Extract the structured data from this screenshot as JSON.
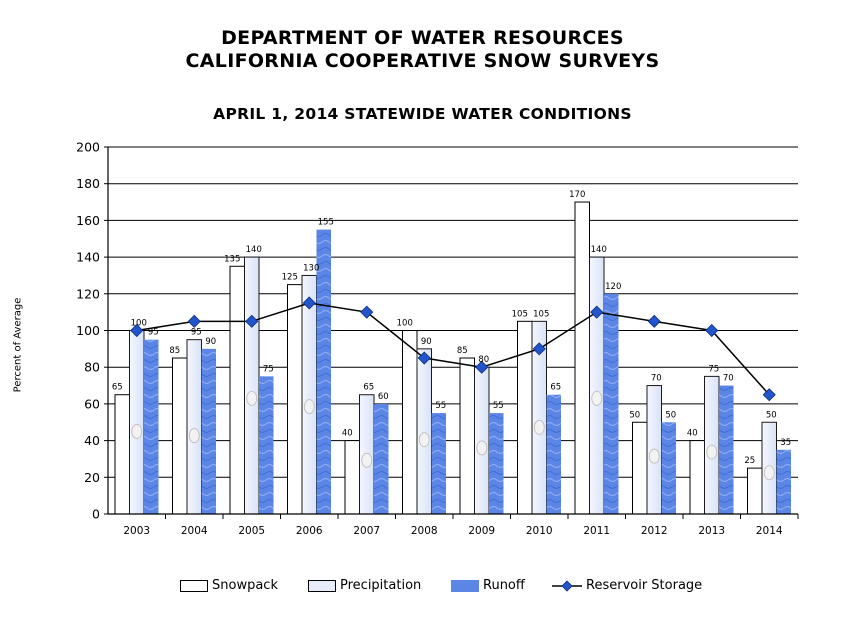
{
  "header": {
    "title_line1": "DEPARTMENT OF WATER RESOURCES",
    "title_line2": "CALIFORNIA COOPERATIVE SNOW SURVEYS",
    "subtitle": "APRIL 1, 2014 STATEWIDE WATER CONDITIONS"
  },
  "colors": {
    "snowpack": "#ffffff",
    "precipitation": "#e6ecfa",
    "runoff": "#5b86e6",
    "reservoir_line": "#000000",
    "reservoir_marker": "#2255cc"
  },
  "chart_data": {
    "type": "bar",
    "title": "APRIL 1, 2014 STATEWIDE WATER CONDITIONS",
    "xlabel": "",
    "ylabel": "Percent of Average",
    "ylim": [
      0,
      200
    ],
    "yticks": [
      0,
      20,
      40,
      60,
      80,
      100,
      120,
      140,
      160,
      180,
      200
    ],
    "grid": true,
    "legend_position": "bottom",
    "categories": [
      "2003",
      "2004",
      "2005",
      "2006",
      "2007",
      "2008",
      "2009",
      "2010",
      "2011",
      "2012",
      "2013",
      "2014"
    ],
    "series": [
      {
        "name": "Snowpack",
        "kind": "bar",
        "values": [
          65,
          85,
          135,
          125,
          40,
          100,
          85,
          105,
          170,
          50,
          40,
          25
        ]
      },
      {
        "name": "Precipitation",
        "kind": "bar",
        "values": [
          100,
          95,
          140,
          130,
          65,
          90,
          80,
          105,
          140,
          70,
          75,
          50
        ]
      },
      {
        "name": "Runoff",
        "kind": "bar",
        "values": [
          95,
          90,
          75,
          155,
          60,
          55,
          55,
          65,
          120,
          50,
          70,
          35
        ]
      },
      {
        "name": "Reservoir Storage",
        "kind": "line",
        "values": [
          100,
          105,
          105,
          115,
          110,
          85,
          80,
          90,
          110,
          105,
          100,
          65
        ]
      }
    ]
  },
  "legend": {
    "snowpack": "Snowpack",
    "precipitation": "Precipitation",
    "runoff": "Runoff",
    "reservoir": "Reservoir Storage"
  }
}
